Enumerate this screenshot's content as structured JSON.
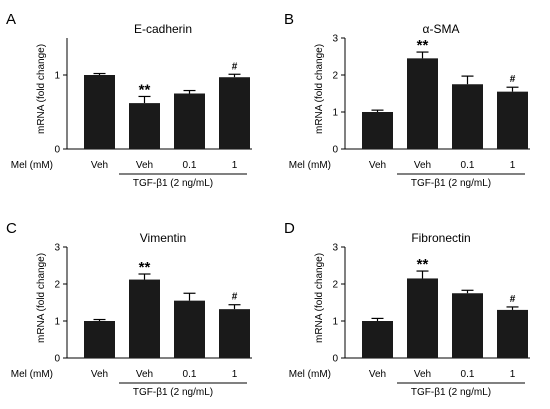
{
  "figure": {
    "bar_color": "#1a1a1a",
    "axis_color": "#000000",
    "x_prefix": "Mel (mM)",
    "group_label": "TGF-β1 (2 ng/mL)"
  },
  "chart_data": [
    {
      "type": "bar",
      "panel": "A",
      "title": "E-cadherin",
      "ylabel": "mRNA (fold change)",
      "ylim": [
        0,
        1.5
      ],
      "yticks": [
        "0",
        "1"
      ],
      "ytick_values": [
        0,
        1
      ],
      "categories": [
        "Veh",
        "Veh",
        "0.1",
        "1"
      ],
      "values": [
        1.0,
        0.62,
        0.75,
        0.97
      ],
      "errors": [
        0.02,
        0.09,
        0.04,
        0.04
      ],
      "annotations": [
        "",
        "**",
        "",
        "#"
      ]
    },
    {
      "type": "bar",
      "panel": "B",
      "title": "α-SMA",
      "ylabel": "mRNA (fold change)",
      "ylim": [
        0,
        3
      ],
      "yticks": [
        "0",
        "1",
        "2",
        "3"
      ],
      "ytick_values": [
        0,
        1,
        2,
        3
      ],
      "categories": [
        "Veh",
        "Veh",
        "0.1",
        "1"
      ],
      "values": [
        1.0,
        2.45,
        1.75,
        1.55
      ],
      "errors": [
        0.05,
        0.17,
        0.22,
        0.12
      ],
      "annotations": [
        "",
        "**",
        "",
        "#"
      ]
    },
    {
      "type": "bar",
      "panel": "C",
      "title": "Vimentin",
      "ylabel": "mRNA (fold change)",
      "ylim": [
        0,
        3
      ],
      "yticks": [
        "0",
        "1",
        "2",
        "3"
      ],
      "ytick_values": [
        0,
        1,
        2,
        3
      ],
      "categories": [
        "Veh",
        "Veh",
        "0.1",
        "1"
      ],
      "values": [
        1.0,
        2.12,
        1.55,
        1.32
      ],
      "errors": [
        0.04,
        0.15,
        0.2,
        0.12
      ],
      "annotations": [
        "",
        "**",
        "",
        "#"
      ]
    },
    {
      "type": "bar",
      "panel": "D",
      "title": "Fibronectin",
      "ylabel": "mRNA (fold change)",
      "ylim": [
        0,
        3
      ],
      "yticks": [
        "0",
        "1",
        "2",
        "3"
      ],
      "ytick_values": [
        0,
        1,
        2,
        3
      ],
      "categories": [
        "Veh",
        "Veh",
        "0.1",
        "1"
      ],
      "values": [
        1.0,
        2.15,
        1.75,
        1.3
      ],
      "errors": [
        0.07,
        0.2,
        0.08,
        0.08
      ],
      "annotations": [
        "",
        "**",
        "",
        "#"
      ]
    }
  ]
}
